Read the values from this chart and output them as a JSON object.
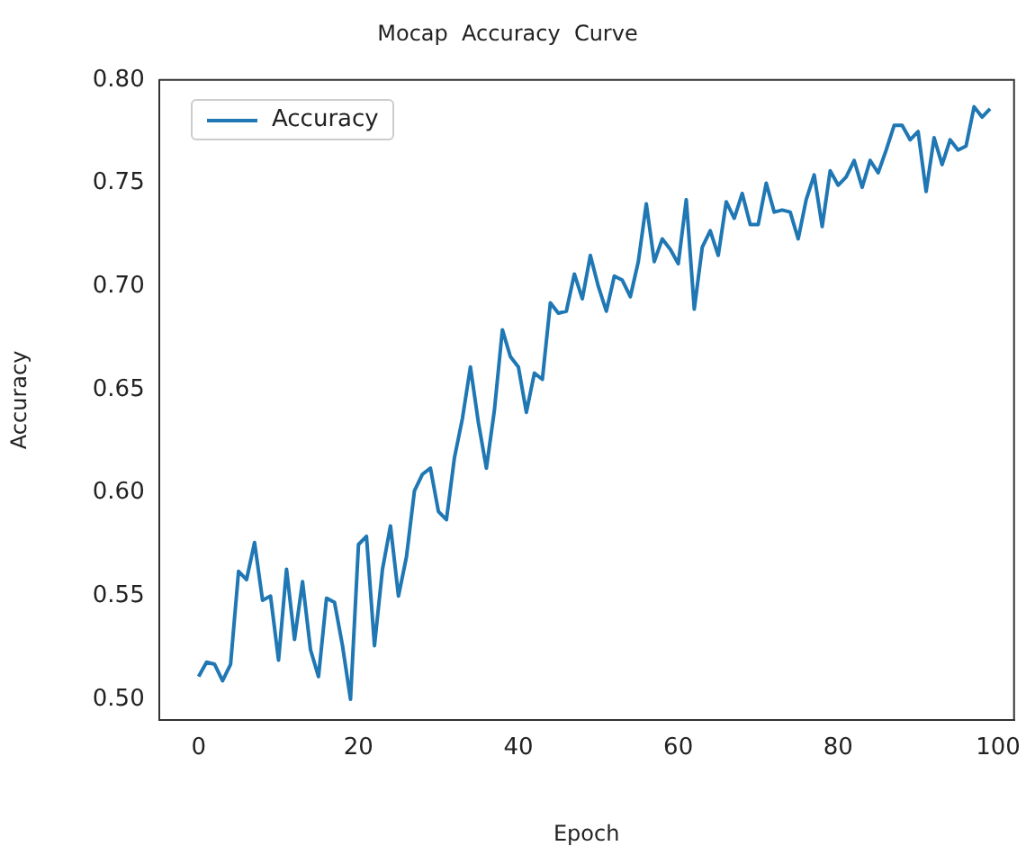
{
  "chart_data": {
    "type": "line",
    "title": "Mocap  Accuracy  Curve",
    "xlabel": "Epoch",
    "ylabel": "Accuracy",
    "x": [
      0,
      1,
      2,
      3,
      4,
      5,
      6,
      7,
      8,
      9,
      10,
      11,
      12,
      13,
      14,
      15,
      16,
      17,
      18,
      19,
      20,
      21,
      22,
      23,
      24,
      25,
      26,
      27,
      28,
      29,
      30,
      31,
      32,
      33,
      34,
      35,
      36,
      37,
      38,
      39,
      40,
      41,
      42,
      43,
      44,
      45,
      46,
      47,
      48,
      49,
      50,
      51,
      52,
      53,
      54,
      55,
      56,
      57,
      58,
      59,
      60,
      61,
      62,
      63,
      64,
      65,
      66,
      67,
      68,
      69,
      70,
      71,
      72,
      73,
      74,
      75,
      76,
      77,
      78,
      79,
      80,
      81,
      82,
      83,
      84,
      85,
      86,
      87,
      88,
      89,
      90,
      91,
      92,
      93,
      94,
      95,
      96,
      97,
      98,
      99
    ],
    "series": [
      {
        "name": "Accuracy",
        "color": "#1f77b4",
        "values": [
          0.511,
          0.518,
          0.517,
          0.509,
          0.517,
          0.562,
          0.558,
          0.576,
          0.548,
          0.55,
          0.519,
          0.563,
          0.529,
          0.557,
          0.524,
          0.511,
          0.549,
          0.547,
          0.526,
          0.5,
          0.575,
          0.579,
          0.526,
          0.563,
          0.584,
          0.55,
          0.569,
          0.601,
          0.609,
          0.612,
          0.591,
          0.587,
          0.617,
          0.636,
          0.661,
          0.634,
          0.612,
          0.64,
          0.679,
          0.666,
          0.661,
          0.639,
          0.658,
          0.655,
          0.692,
          0.687,
          0.688,
          0.706,
          0.694,
          0.715,
          0.7,
          0.688,
          0.705,
          0.703,
          0.695,
          0.712,
          0.74,
          0.712,
          0.723,
          0.718,
          0.711,
          0.742,
          0.689,
          0.719,
          0.727,
          0.715,
          0.741,
          0.733,
          0.745,
          0.73,
          0.73,
          0.75,
          0.736,
          0.737,
          0.736,
          0.723,
          0.742,
          0.754,
          0.729,
          0.756,
          0.749,
          0.753,
          0.761,
          0.748,
          0.761,
          0.755,
          0.766,
          0.778,
          0.778,
          0.771,
          0.775,
          0.746,
          0.772,
          0.759,
          0.771,
          0.766,
          0.768,
          0.787,
          0.782,
          0.786
        ]
      }
    ],
    "xlim": [
      -4.95,
      102
    ],
    "ylim": [
      0.49,
      0.8
    ],
    "xticks": [
      0,
      20,
      40,
      60,
      80,
      100
    ],
    "yticks": [
      {
        "value": 0.5,
        "label": "0.50"
      },
      {
        "value": 0.55,
        "label": "0.55"
      },
      {
        "value": 0.6,
        "label": "0.60"
      },
      {
        "value": 0.65,
        "label": "0.65"
      },
      {
        "value": 0.7,
        "label": "0.70"
      },
      {
        "value": 0.75,
        "label": "0.75"
      },
      {
        "value": 0.8,
        "label": "0.80"
      }
    ],
    "grid": false,
    "legend": "top left",
    "marker": "none",
    "line_style": "solid"
  }
}
